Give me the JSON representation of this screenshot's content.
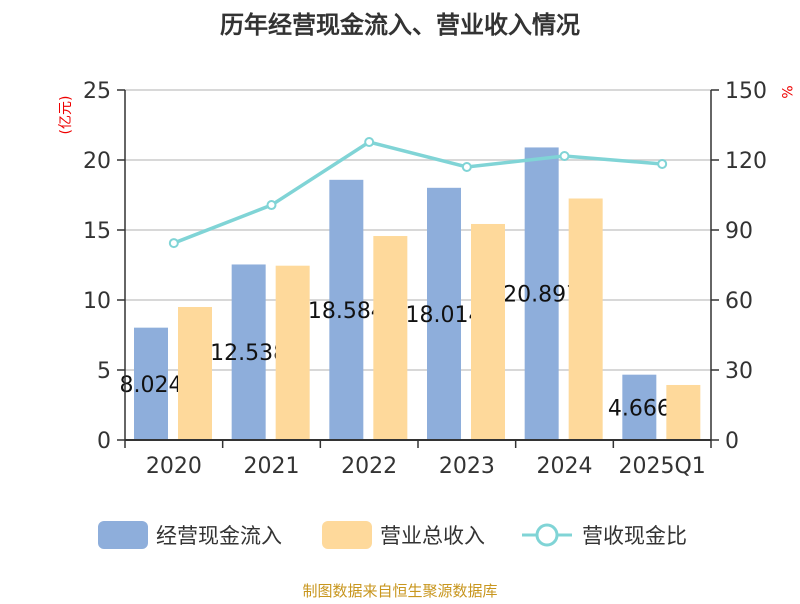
{
  "chart_data": {
    "type": "bar",
    "title": "历年经营现金流入、营业收入情况",
    "categories": [
      "2020",
      "2021",
      "2022",
      "2023",
      "2024",
      "2025Q1"
    ],
    "ylabel_left": "(亿元)",
    "ylabel_right": "%",
    "ylim_left": [
      0,
      25
    ],
    "yticks_left": [
      0,
      5,
      10,
      15,
      20,
      25
    ],
    "ylim_right": [
      0,
      150
    ],
    "yticks_right": [
      0,
      30,
      60,
      90,
      120,
      150
    ],
    "grid": true,
    "legend_position": "bottom",
    "series": [
      {
        "name": "经营现金流入",
        "type": "bar",
        "color": "#8eaedb",
        "values": [
          8.024,
          12.538,
          18.584,
          18.014,
          20.897,
          4.666
        ],
        "labels": [
          "8.024",
          "12.538",
          "18.584",
          "18.014",
          "20.897",
          "4.666"
        ]
      },
      {
        "name": "营业总收入",
        "type": "bar",
        "color": "#fed99b",
        "values": [
          9.5,
          12.45,
          14.57,
          15.43,
          17.25,
          3.93
        ]
      },
      {
        "name": "营收现金比",
        "type": "line",
        "axis": "right",
        "color": "#80d4d6",
        "values": [
          84.4,
          100.7,
          127.7,
          117.0,
          121.7,
          118.3
        ]
      }
    ]
  },
  "source": "制图数据来自恒生聚源数据库"
}
